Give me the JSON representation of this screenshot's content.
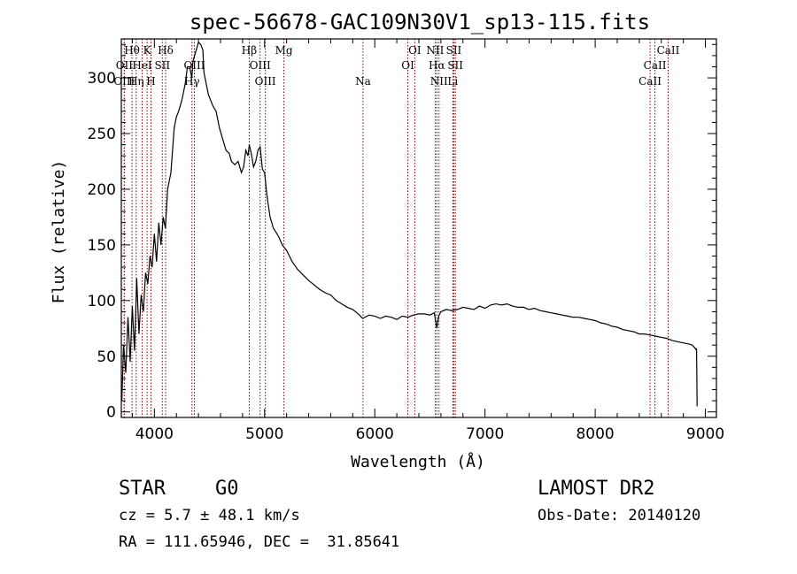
{
  "chart_data": {
    "type": "line",
    "title": "spec-56678-GAC109N30V1_sp13-115.fits",
    "xlabel": "Wavelength (Å)",
    "ylabel": "Flux (relative)",
    "xlim": [
      3700,
      9100
    ],
    "ylim": [
      -5,
      335
    ],
    "xticks": [
      4000,
      5000,
      6000,
      7000,
      8000,
      9000
    ],
    "yticks": [
      0,
      50,
      100,
      150,
      200,
      250,
      300
    ],
    "grid": false,
    "series": [
      {
        "color": "#000000",
        "x": [
          3705,
          3720,
          3740,
          3760,
          3780,
          3800,
          3820,
          3840,
          3860,
          3880,
          3900,
          3920,
          3940,
          3960,
          3980,
          4000,
          4020,
          4040,
          4060,
          4080,
          4100,
          4120,
          4150,
          4180,
          4200,
          4220,
          4250,
          4280,
          4300,
          4320,
          4340,
          4350,
          4380,
          4400,
          4420,
          4440,
          4450,
          4470,
          4490,
          4510,
          4530,
          4560,
          4590,
          4620,
          4650,
          4680,
          4700,
          4730,
          4760,
          4790,
          4810,
          4830,
          4850,
          4861,
          4880,
          4900,
          4920,
          4940,
          4960,
          4980,
          5000,
          5020,
          5050,
          5080,
          5100,
          5130,
          5160,
          5200,
          5250,
          5300,
          5350,
          5400,
          5450,
          5500,
          5550,
          5600,
          5650,
          5700,
          5750,
          5800,
          5850,
          5890,
          5950,
          6000,
          6050,
          6100,
          6150,
          6200,
          6250,
          6300,
          6350,
          6400,
          6450,
          6500,
          6540,
          6563,
          6580,
          6600,
          6650,
          6700,
          6750,
          6800,
          6850,
          6900,
          6950,
          7000,
          7050,
          7100,
          7150,
          7200,
          7250,
          7300,
          7350,
          7400,
          7450,
          7500,
          7550,
          7600,
          7650,
          7700,
          7750,
          7800,
          7850,
          7900,
          7950,
          8000,
          8050,
          8100,
          8150,
          8200,
          8250,
          8300,
          8350,
          8400,
          8450,
          8500,
          8550,
          8600,
          8650,
          8700,
          8750,
          8800,
          8850,
          8880,
          8900,
          8915,
          8920,
          8925
        ],
        "y": [
          10,
          60,
          35,
          85,
          45,
          95,
          55,
          120,
          70,
          105,
          90,
          125,
          115,
          140,
          130,
          160,
          135,
          170,
          150,
          175,
          165,
          200,
          215,
          255,
          265,
          270,
          280,
          295,
          310,
          310,
          300,
          315,
          325,
          332,
          330,
          325,
          305,
          295,
          285,
          280,
          275,
          270,
          255,
          245,
          235,
          232,
          225,
          222,
          225,
          215,
          220,
          235,
          230,
          240,
          232,
          220,
          225,
          235,
          238,
          218,
          215,
          195,
          175,
          165,
          162,
          157,
          150,
          145,
          135,
          128,
          123,
          118,
          114,
          110,
          107,
          105,
          100,
          97,
          94,
          92,
          88,
          84,
          87,
          86,
          84,
          86,
          85,
          83,
          86,
          85,
          87,
          88,
          88,
          87,
          89,
          75,
          86,
          90,
          92,
          91,
          92,
          94,
          93,
          92,
          95,
          93,
          96,
          97,
          96,
          97,
          95,
          94,
          94,
          92,
          93,
          91,
          90,
          89,
          88,
          87,
          86,
          85,
          85,
          84,
          83,
          82,
          80,
          79,
          77,
          76,
          74,
          73,
          72,
          70,
          70,
          69,
          68,
          67,
          66,
          64,
          63,
          62,
          61,
          60,
          58,
          56,
          57,
          5
        ]
      }
    ],
    "line_markers": [
      {
        "label": "Hθ",
        "wavelength": 3797,
        "row": 1
      },
      {
        "label": "OII",
        "wavelength": 3727,
        "row": 2
      },
      {
        "label": "OIII",
        "wavelength": 3727,
        "row": 3
      },
      {
        "label": "Hη",
        "wavelength": 3835,
        "row": 3
      },
      {
        "label": "K",
        "wavelength": 3934,
        "row": 1
      },
      {
        "label": "HeI",
        "wavelength": 3889,
        "row": 2
      },
      {
        "label": "SII",
        "wavelength": 4072,
        "row": 2
      },
      {
        "label": "H",
        "wavelength": 3969,
        "row": 3
      },
      {
        "label": "Hδ",
        "wavelength": 4102,
        "row": 1
      },
      {
        "label": "OIII",
        "wavelength": 4363,
        "row": 2
      },
      {
        "label": "Hγ",
        "wavelength": 4341,
        "row": 3
      },
      {
        "label": "Hβ",
        "wavelength": 4861,
        "row": 1
      },
      {
        "label": "Mg",
        "wavelength": 5175,
        "row": 1
      },
      {
        "label": "OIII",
        "wavelength": 4959,
        "row": 2
      },
      {
        "label": "OIII",
        "wavelength": 5007,
        "row": 3
      },
      {
        "label": "Na",
        "wavelength": 5893,
        "row": 3
      },
      {
        "label": "OI",
        "wavelength": 6300,
        "row": 2
      },
      {
        "label": "OI",
        "wavelength": 6363,
        "row": 1
      },
      {
        "label": "NII",
        "wavelength": 6548,
        "row": 1
      },
      {
        "label": "SII",
        "wavelength": 6717,
        "row": 1
      },
      {
        "label": "Hα",
        "wavelength": 6563,
        "row": 2
      },
      {
        "label": "SII",
        "wavelength": 6731,
        "row": 2
      },
      {
        "label": "NII",
        "wavelength": 6583,
        "row": 3
      },
      {
        "label": "Li",
        "wavelength": 6708,
        "row": 3
      },
      {
        "label": "CaII",
        "wavelength": 8662,
        "row": 1
      },
      {
        "label": "CaII",
        "wavelength": 8542,
        "row": 2
      },
      {
        "label": "CaII",
        "wavelength": 8498,
        "row": 3
      }
    ],
    "marker_color": "#8b0000"
  },
  "info": {
    "class_label": "STAR",
    "subclass_label": "G0",
    "survey_label": "LAMOST DR2",
    "redshift_text": "cz = 5.7 ± 48.1 km/s",
    "obs_date_text": "Obs-Date: 20140120",
    "coords_text": "RA = 111.65946, DEC =  31.85641"
  }
}
